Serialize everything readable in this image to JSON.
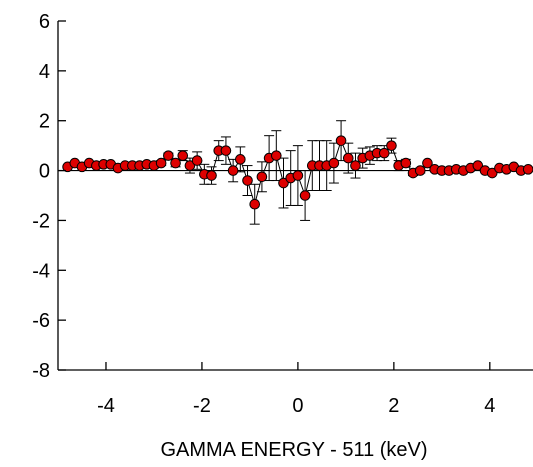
{
  "chart_data": {
    "type": "scatter",
    "title": "",
    "xlabel": "GAMMA ENERGY - 511 (keV)",
    "ylabel": "",
    "xlim": [
      -5,
      4.9
    ],
    "ylim": [
      -8,
      6
    ],
    "xticks": [
      -4,
      -2,
      0,
      2,
      4
    ],
    "yticks": [
      6,
      4,
      2,
      0,
      -2,
      -4,
      -6,
      -8
    ],
    "grid": false,
    "legend": "none",
    "marker_color": "#dd0000",
    "marker_edge_color": "#000000",
    "line_color": "#000000",
    "baseline_y": 0,
    "series": [
      {
        "x": [
          -4.8,
          -4.65,
          -4.5,
          -4.35,
          -4.2,
          -4.05,
          -3.9,
          -3.75,
          -3.6,
          -3.45,
          -3.3,
          -3.15,
          -3.0,
          -2.85,
          -2.7,
          -2.55,
          -2.4,
          -2.25,
          -2.1,
          -1.95,
          -1.8,
          -1.65,
          -1.5,
          -1.35,
          -1.2,
          -1.05,
          -0.9,
          -0.75,
          -0.6,
          -0.45,
          -0.3,
          -0.15,
          0.0,
          0.15,
          0.3,
          0.45,
          0.6,
          0.75,
          0.9,
          1.05,
          1.2,
          1.35,
          1.5,
          1.65,
          1.8,
          1.95,
          2.1,
          2.25,
          2.4,
          2.55,
          2.7,
          2.85,
          3.0,
          3.15,
          3.3,
          3.45,
          3.6,
          3.75,
          3.9,
          4.05,
          4.2,
          4.35,
          4.5,
          4.65,
          4.8
        ],
        "y": [
          0.15,
          0.3,
          0.15,
          0.3,
          0.2,
          0.25,
          0.25,
          0.1,
          0.2,
          0.2,
          0.2,
          0.25,
          0.2,
          0.3,
          0.6,
          0.3,
          0.6,
          0.2,
          0.4,
          -0.15,
          -0.2,
          0.8,
          0.8,
          0.0,
          0.45,
          -0.4,
          -1.35,
          -0.25,
          0.5,
          0.6,
          -0.5,
          -0.3,
          -0.2,
          -1.0,
          0.2,
          0.2,
          0.2,
          0.3,
          1.2,
          0.5,
          0.2,
          0.5,
          0.6,
          0.7,
          0.7,
          1.0,
          0.2,
          0.3,
          -0.1,
          0.0,
          0.3,
          0.05,
          0.0,
          0.0,
          0.05,
          0.0,
          0.1,
          0.2,
          0.0,
          -0.1,
          0.1,
          0.05,
          0.15,
          0.0,
          0.05
        ],
        "error": [
          0.05,
          0.05,
          0.05,
          0.05,
          0.05,
          0.05,
          0.05,
          0.05,
          0.05,
          0.05,
          0.05,
          0.05,
          0.1,
          0.1,
          0.1,
          0.15,
          0.2,
          0.3,
          0.35,
          0.4,
          0.35,
          0.4,
          0.55,
          0.45,
          0.5,
          0.6,
          0.8,
          0.6,
          0.9,
          1.0,
          1.0,
          1.1,
          1.2,
          1.0,
          1.0,
          1.0,
          1.0,
          0.8,
          0.8,
          0.6,
          0.5,
          0.4,
          0.35,
          0.3,
          0.3,
          0.3,
          0.2,
          0.15,
          0.1,
          0.1,
          0.05,
          0.05,
          0.05,
          0.05,
          0.05,
          0.05,
          0.05,
          0.05,
          0.05,
          0.05,
          0.05,
          0.05,
          0.05,
          0.05,
          0.05
        ]
      }
    ]
  }
}
